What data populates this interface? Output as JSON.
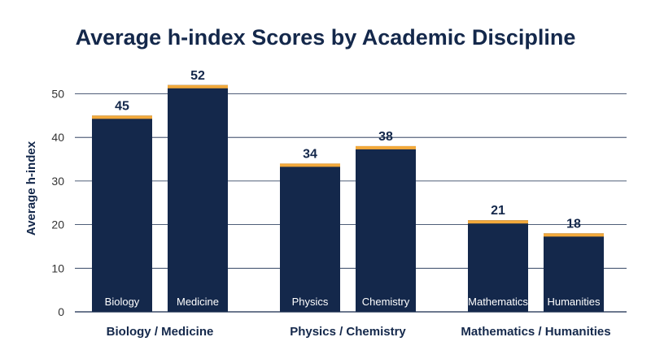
{
  "chart_data": {
    "type": "bar",
    "title": "Average h-index Scores by Academic Discipline",
    "ylabel": "Average h-index",
    "xlabel": "",
    "ylim": [
      0,
      55
    ],
    "yticks": [
      0,
      10,
      20,
      30,
      40,
      50
    ],
    "grid": true,
    "categories": [
      "Biology",
      "Medicine",
      "Physics",
      "Chemistry",
      "Mathematics",
      "Humanities"
    ],
    "values": [
      45,
      52,
      34,
      38,
      21,
      18
    ],
    "groups": [
      {
        "label": "Biology / Medicine",
        "members": [
          "Biology",
          "Medicine"
        ]
      },
      {
        "label": "Physics / Chemistry",
        "members": [
          "Physics",
          "Chemistry"
        ]
      },
      {
        "label": "Mathematics / Humanities",
        "members": [
          "Mathematics",
          "Humanities"
        ]
      }
    ]
  },
  "colors": {
    "bar": "#14284b",
    "bar_cap": "#f2a93b",
    "text": "#14284b",
    "tick_text": "#333333",
    "grid": "#14284b",
    "inbar_text": "#ffffff"
  }
}
